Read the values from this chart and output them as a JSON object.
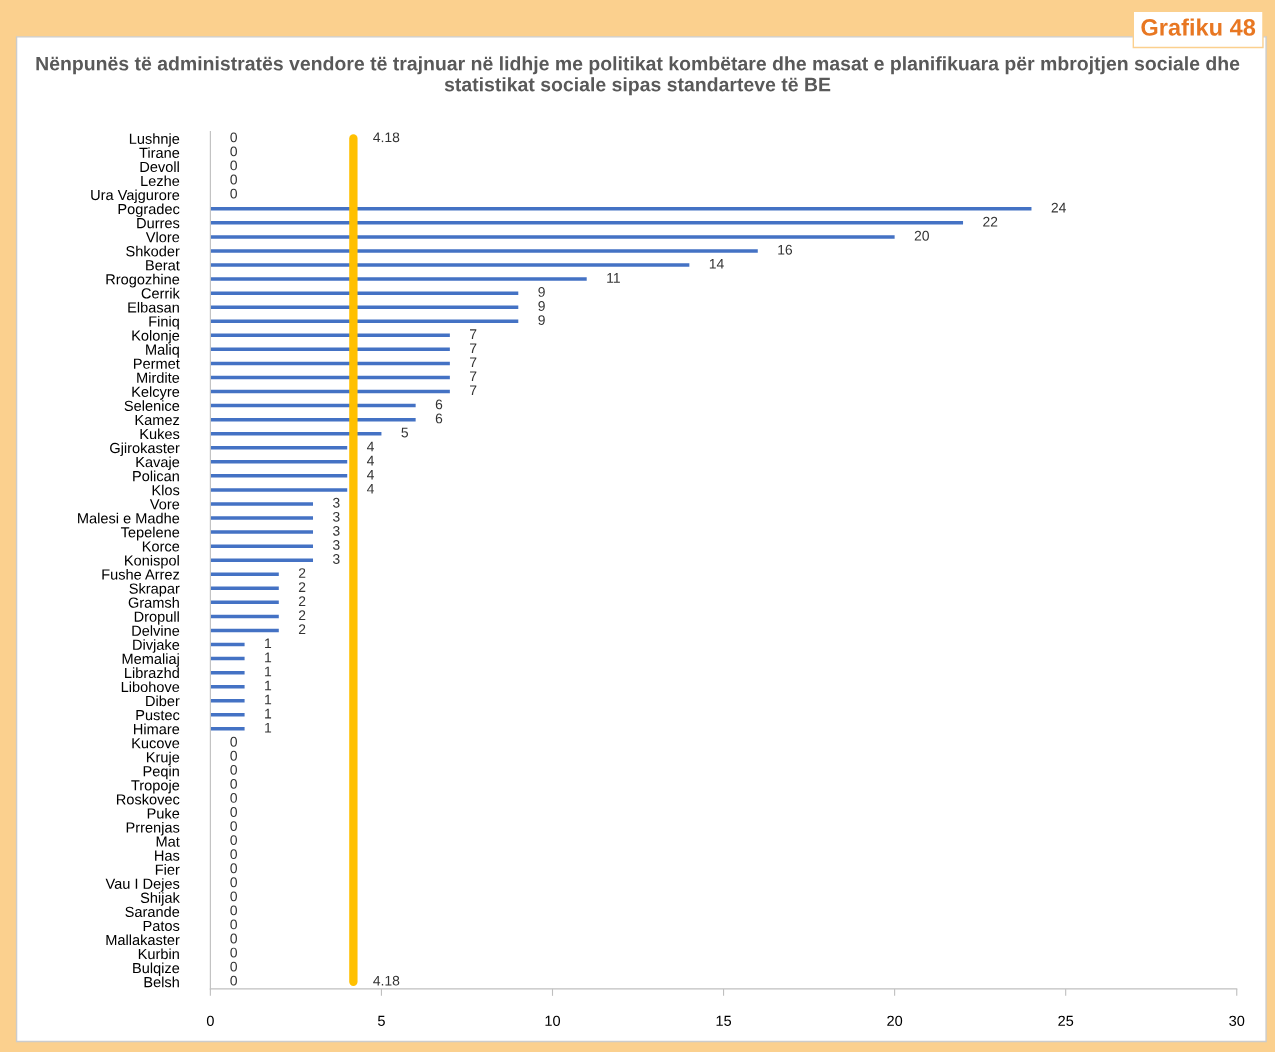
{
  "chart_data": {
    "type": "bar",
    "orientation": "horizontal",
    "title": "Nënpunës të administratës vendore të trajnuar në lidhje me politikat kombëtare dhe masat e planifikuara për mbrojtjen sociale dhe statistikat sociale sipas standarteve të BE",
    "annotations": [
      "Grafiku 48"
    ],
    "categories": [
      "Lushnje",
      "Tirane",
      "Devoll",
      "Lezhe",
      "Ura Vajgurore",
      "Pogradec",
      "Durres",
      "Vlore",
      "Shkoder",
      "Berat",
      "Rrogozhine",
      "Cerrik",
      "Elbasan",
      "Finiq",
      "Kolonje",
      "Maliq",
      "Permet",
      "Mirdite",
      "Kelcyre",
      "Selenice",
      "Kamez",
      "Kukes",
      "Gjirokaster",
      "Kavaje",
      "Polican",
      "Klos",
      "Vore",
      "Malesi e Madhe",
      "Tepelene",
      "Korce",
      "Konispol",
      "Fushe Arrez",
      "Skrapar",
      "Gramsh",
      "Dropull",
      "Delvine",
      "Divjake",
      "Memaliaj",
      "Librazhd",
      "Libohove",
      "Diber",
      "Pustec",
      "Himare",
      "Kucove",
      "Kruje",
      "Peqin",
      "Tropoje",
      "Roskovec",
      "Puke",
      "Prrenjas",
      "Mat",
      "Has",
      "Fier",
      "Vau I Dejes",
      "Shijak",
      "Sarande",
      "Patos",
      "Mallakaster",
      "Kurbin",
      "Bulqize",
      "Belsh"
    ],
    "series": [
      {
        "type": "bar",
        "color": "#4472c4",
        "values": [
          0,
          0,
          0,
          0,
          0,
          24,
          22,
          20,
          16,
          14,
          11,
          9,
          9,
          9,
          7,
          7,
          7,
          7,
          7,
          6,
          6,
          5,
          4,
          4,
          4,
          4,
          3,
          3,
          3,
          3,
          3,
          2,
          2,
          2,
          2,
          2,
          1,
          1,
          1,
          1,
          1,
          1,
          1,
          0,
          0,
          0,
          0,
          0,
          0,
          0,
          0,
          0,
          0,
          0,
          0,
          0,
          0,
          0,
          0,
          0,
          0
        ]
      },
      {
        "type": "line",
        "color": "#ffc000",
        "values": [
          4.18,
          4.18,
          4.18,
          4.18,
          4.18,
          4.18,
          4.18,
          4.18,
          4.18,
          4.18,
          4.18,
          4.18,
          4.18,
          4.18,
          4.18,
          4.18,
          4.18,
          4.18,
          4.18,
          4.18,
          4.18,
          4.18,
          4.18,
          4.18,
          4.18,
          4.18,
          4.18,
          4.18,
          4.18,
          4.18,
          4.18,
          4.18,
          4.18,
          4.18,
          4.18,
          4.18,
          4.18,
          4.18,
          4.18,
          4.18,
          4.18,
          4.18,
          4.18,
          4.18,
          4.18,
          4.18,
          4.18,
          4.18,
          4.18,
          4.18,
          4.18,
          4.18,
          4.18,
          4.18,
          4.18,
          4.18,
          4.18,
          4.18,
          4.18,
          4.18,
          4.18
        ],
        "value_labels": [
          "4.18",
          null,
          null,
          null,
          null,
          null,
          null,
          null,
          null,
          null,
          null,
          null,
          null,
          null,
          null,
          null,
          null,
          null,
          null,
          null,
          null,
          null,
          null,
          null,
          null,
          null,
          null,
          null,
          null,
          null,
          null,
          null,
          null,
          null,
          null,
          null,
          null,
          null,
          null,
          null,
          null,
          null,
          null,
          null,
          null,
          null,
          null,
          null,
          null,
          null,
          null,
          null,
          null,
          null,
          null,
          null,
          null,
          null,
          null,
          null,
          "4.18"
        ]
      }
    ],
    "data_labels": true,
    "xlim": [
      0,
      30
    ],
    "xticks": [
      0,
      5,
      10,
      15,
      20,
      25,
      30
    ],
    "grid": false
  }
}
